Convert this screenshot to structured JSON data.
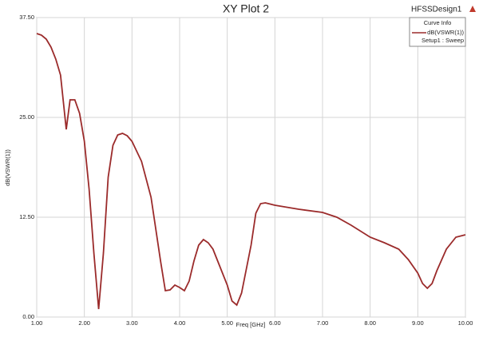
{
  "chart_data": {
    "type": "line",
    "title": "XY Plot 2",
    "design": "HFSSDesign1",
    "xlabel": "Freq [GHz]",
    "ylabel": "dB(VSWR(1))",
    "legend_title": "Curve Info",
    "legend_source": "Setup1 : Sweep",
    "legend_position": "upper right",
    "grid": true,
    "xlim": [
      1,
      10
    ],
    "ylim": [
      0,
      37.5
    ],
    "xticks": [
      {
        "value": 1,
        "label": "1.00"
      },
      {
        "value": 2,
        "label": "2.00"
      },
      {
        "value": 3,
        "label": "3.00"
      },
      {
        "value": 4,
        "label": "4.00"
      },
      {
        "value": 5,
        "label": "5.00"
      },
      {
        "value": 6,
        "label": "6.00"
      },
      {
        "value": 7,
        "label": "7.00"
      },
      {
        "value": 8,
        "label": "8.00"
      },
      {
        "value": 9,
        "label": "9.00"
      },
      {
        "value": 10,
        "label": "10.00"
      }
    ],
    "yticks": [
      {
        "value": 0,
        "label": "0.00"
      },
      {
        "value": 12.5,
        "label": "12.50"
      },
      {
        "value": 25,
        "label": "25.00"
      },
      {
        "value": 37.5,
        "label": "37.50"
      }
    ],
    "x": [
      1.0,
      1.1,
      1.2,
      1.3,
      1.4,
      1.5,
      1.62,
      1.7,
      1.8,
      1.9,
      2.0,
      2.1,
      2.2,
      2.3,
      2.4,
      2.5,
      2.6,
      2.7,
      2.8,
      2.9,
      3.0,
      3.2,
      3.4,
      3.6,
      3.7,
      3.8,
      3.9,
      4.0,
      4.1,
      4.2,
      4.3,
      4.4,
      4.5,
      4.6,
      4.7,
      4.8,
      5.0,
      5.1,
      5.2,
      5.3,
      5.5,
      5.6,
      5.7,
      5.8,
      6.0,
      6.5,
      7.0,
      7.3,
      7.6,
      8.0,
      8.3,
      8.6,
      8.8,
      9.0,
      9.1,
      9.2,
      9.3,
      9.4,
      9.6,
      9.8,
      10.0
    ],
    "series": [
      {
        "name": "dB(VSWR(1))",
        "color": "#9b2b2b",
        "values": [
          35.5,
          35.3,
          34.8,
          33.8,
          32.3,
          30.3,
          23.5,
          27.2,
          27.2,
          25.5,
          22,
          16,
          8,
          1.0,
          8,
          17.5,
          21.5,
          22.8,
          23,
          22.7,
          22,
          19.5,
          15,
          7,
          3.3,
          3.4,
          4.0,
          3.7,
          3.3,
          4.5,
          7,
          9,
          9.7,
          9.3,
          8.5,
          7,
          4,
          2,
          1.5,
          3,
          9,
          13,
          14.2,
          14.3,
          14,
          13.5,
          13.1,
          12.5,
          11.5,
          10,
          9.3,
          8.5,
          7.2,
          5.5,
          4.2,
          3.6,
          4.2,
          5.8,
          8.5,
          10,
          10.3
        ]
      }
    ]
  }
}
